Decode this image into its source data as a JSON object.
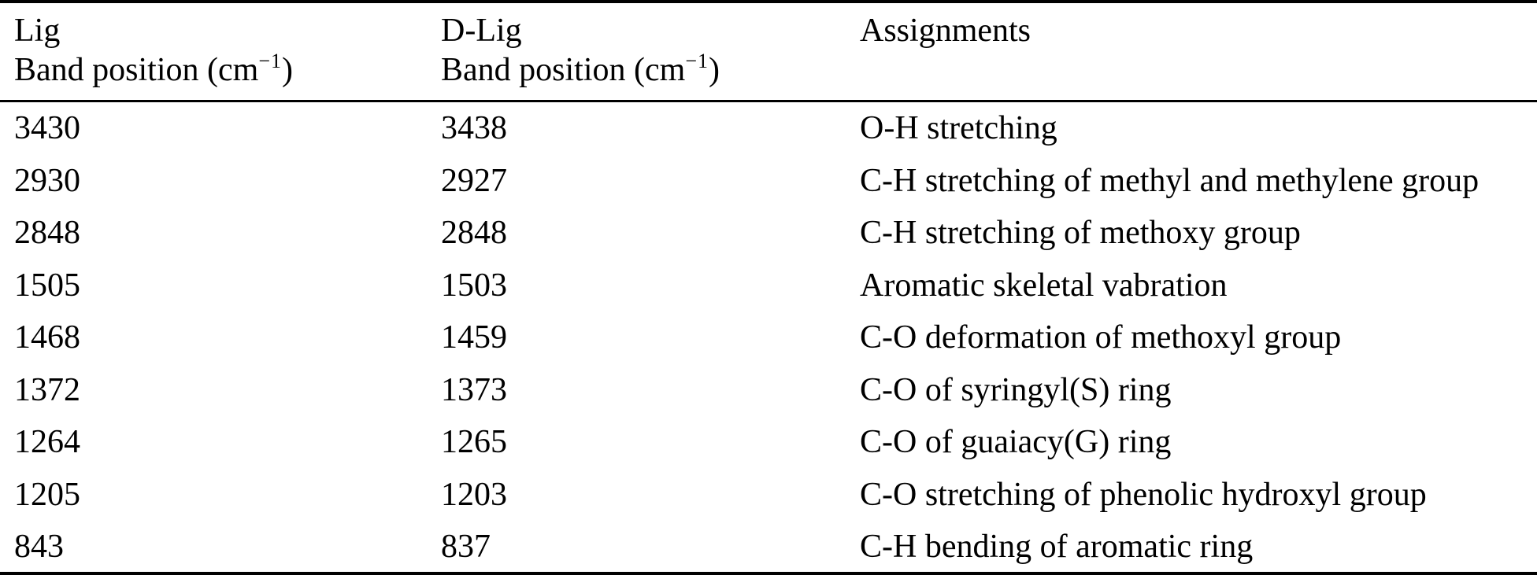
{
  "table": {
    "title_hint": "FTIR band positions and assignments",
    "columns": {
      "col1": {
        "line1": "Lig",
        "line2_pre": "Band position (cm",
        "line2_sup": "−1",
        "line2_post": ")"
      },
      "col2": {
        "line1": "D-Lig",
        "line2_pre": "Band position (cm",
        "line2_sup": "−1",
        "line2_post": ")"
      },
      "col3": {
        "line1": "Assignments"
      }
    },
    "rows": [
      {
        "lig": "3430",
        "dlig": "3438",
        "assignment": "O-H stretching"
      },
      {
        "lig": "2930",
        "dlig": "2927",
        "assignment": "C-H stretching of methyl and methylene group"
      },
      {
        "lig": "2848",
        "dlig": "2848",
        "assignment": "C-H stretching of methoxy group"
      },
      {
        "lig": "1505",
        "dlig": "1503",
        "assignment": "Aromatic skeletal vabration"
      },
      {
        "lig": "1468",
        "dlig": "1459",
        "assignment": "C-O deformation of methoxyl group"
      },
      {
        "lig": "1372",
        "dlig": "1373",
        "assignment": "C-O of syringyl(S) ring"
      },
      {
        "lig": "1264",
        "dlig": "1265",
        "assignment": "C-O of guaiacy(G) ring"
      },
      {
        "lig": "1205",
        "dlig": "1203",
        "assignment": "C-O stretching of phenolic hydroxyl group"
      },
      {
        "lig": "843",
        "dlig": "837",
        "assignment": "C-H bending of aromatic ring"
      }
    ]
  },
  "colors": {
    "text": "#000000",
    "background": "#ffffff",
    "rule": "#000000"
  }
}
